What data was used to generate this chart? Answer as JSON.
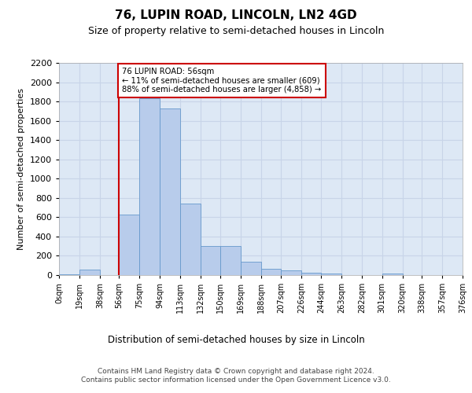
{
  "title": "76, LUPIN ROAD, LINCOLN, LN2 4GD",
  "subtitle": "Size of property relative to semi-detached houses in Lincoln",
  "xlabel": "Distribution of semi-detached houses by size in Lincoln",
  "ylabel": "Number of semi-detached properties",
  "footer_line1": "Contains HM Land Registry data © Crown copyright and database right 2024.",
  "footer_line2": "Contains public sector information licensed under the Open Government Licence v3.0.",
  "property_label": "76 LUPIN ROAD: 56sqm",
  "pct_smaller": 11,
  "pct_larger": 88,
  "count_smaller": 609,
  "count_larger": 4858,
  "bin_edges": [
    0,
    19,
    38,
    56,
    75,
    94,
    113,
    132,
    150,
    169,
    188,
    207,
    226,
    244,
    263,
    282,
    301,
    320,
    338,
    357,
    376
  ],
  "bin_counts": [
    10,
    60,
    0,
    630,
    1830,
    1730,
    740,
    305,
    305,
    140,
    65,
    50,
    25,
    20,
    0,
    0,
    20,
    0,
    0,
    0
  ],
  "bar_color": "#b8cceb",
  "bar_edge_color": "#6699cc",
  "vline_color": "#cc0000",
  "vline_x": 56,
  "annotation_box_edge": "#cc0000",
  "bg_color": "#dde8f5",
  "grid_color": "#c8d4e8",
  "ylim": [
    0,
    2200
  ],
  "yticks": [
    0,
    200,
    400,
    600,
    800,
    1000,
    1200,
    1400,
    1600,
    1800,
    2000,
    2200
  ]
}
